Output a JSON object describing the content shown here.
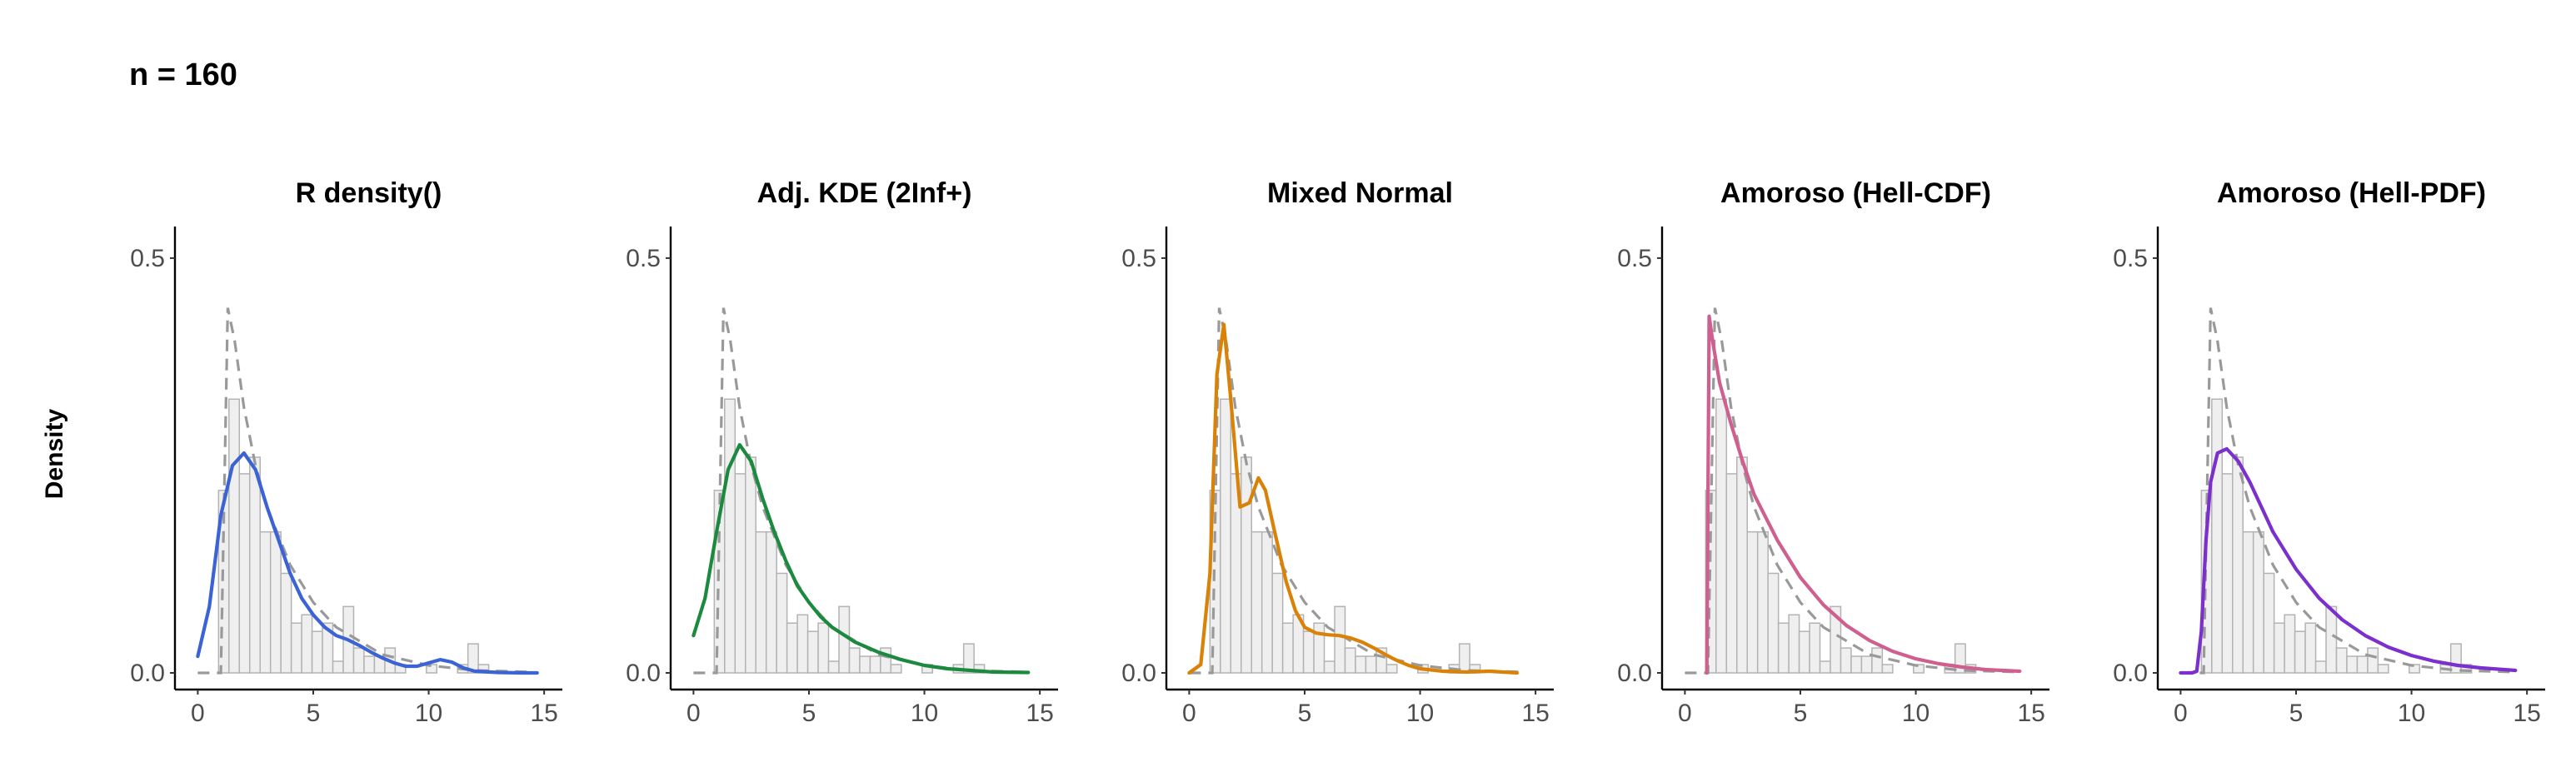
{
  "figure": {
    "title": "n = 160",
    "ylabel": "Density"
  },
  "colors": {
    "histogram_fill": "#efefef",
    "histogram_stroke": "#b3b3b3",
    "true_density": "#999999",
    "axis": "#000000"
  },
  "chart_data": [
    {
      "type": "line",
      "title": "R density()",
      "color": "#3b63d6",
      "xlim": [
        -0.7,
        15.5
      ],
      "ylim": [
        0,
        0.52
      ],
      "xticks": [
        "0",
        "5",
        "10",
        "15"
      ],
      "yticks": [
        "0.0",
        "0.5"
      ],
      "histogram": {
        "bin_width": 0.45,
        "bin_start": 0.9,
        "densities": [
          0.22,
          0.33,
          0.24,
          0.26,
          0.17,
          0.17,
          0.12,
          0.06,
          0.07,
          0.05,
          0.06,
          0.014,
          0.08,
          0.03,
          0.02,
          0.02,
          0.03,
          0.01,
          0.0,
          0.0,
          0.01,
          0.0,
          0.0,
          0.01,
          0.035,
          0.01
        ]
      },
      "true_density": {
        "x": [
          0.0,
          1.0,
          1.3,
          1.6,
          2.0,
          2.5,
          3.0,
          4.0,
          5.0,
          6.0,
          8.0,
          10.0,
          12.0,
          14.5
        ],
        "y": [
          0.0,
          0.0,
          0.44,
          0.4,
          0.32,
          0.25,
          0.2,
          0.13,
          0.085,
          0.055,
          0.022,
          0.009,
          0.003,
          0.001
        ]
      },
      "estimate": {
        "x": [
          0.0,
          0.5,
          1.0,
          1.5,
          2.0,
          2.5,
          3.0,
          3.5,
          4.0,
          4.5,
          5.0,
          5.5,
          6.0,
          6.5,
          7.0,
          7.5,
          8.0,
          8.5,
          9.0,
          9.5,
          10.0,
          10.5,
          11.0,
          11.5,
          12.0,
          13.0,
          14.0,
          14.7
        ],
        "y": [
          0.02,
          0.08,
          0.19,
          0.25,
          0.265,
          0.245,
          0.2,
          0.16,
          0.12,
          0.09,
          0.07,
          0.055,
          0.045,
          0.04,
          0.033,
          0.025,
          0.018,
          0.012,
          0.008,
          0.008,
          0.012,
          0.016,
          0.013,
          0.006,
          0.002,
          0.0005,
          0.0,
          0.0
        ]
      }
    },
    {
      "type": "line",
      "title": "Adj. KDE (2Inf+)",
      "color": "#1c8a3e",
      "xlim": [
        -0.7,
        15.5
      ],
      "ylim": [
        0,
        0.52
      ],
      "xticks": [
        "0",
        "5",
        "10",
        "15"
      ],
      "yticks": [
        "0.0",
        "0.5"
      ],
      "histogram": {
        "bin_width": 0.45,
        "bin_start": 0.9,
        "densities": [
          0.22,
          0.33,
          0.24,
          0.26,
          0.17,
          0.17,
          0.12,
          0.06,
          0.07,
          0.05,
          0.06,
          0.014,
          0.08,
          0.03,
          0.02,
          0.02,
          0.03,
          0.01,
          0.0,
          0.0,
          0.01,
          0.0,
          0.0,
          0.01,
          0.035,
          0.01
        ]
      },
      "true_density": {
        "x": [
          0.0,
          1.0,
          1.3,
          1.6,
          2.0,
          2.5,
          3.0,
          4.0,
          5.0,
          6.0,
          8.0,
          10.0,
          12.0,
          14.5
        ],
        "y": [
          0.0,
          0.0,
          0.44,
          0.4,
          0.32,
          0.25,
          0.2,
          0.13,
          0.085,
          0.055,
          0.022,
          0.009,
          0.003,
          0.001
        ]
      },
      "estimate": {
        "x": [
          0.0,
          0.5,
          1.0,
          1.5,
          2.0,
          2.5,
          3.0,
          3.5,
          4.0,
          4.5,
          5.0,
          5.5,
          6.0,
          7.0,
          8.0,
          9.0,
          10.0,
          11.0,
          12.0,
          13.0,
          14.5
        ],
        "y": [
          0.045,
          0.09,
          0.17,
          0.245,
          0.275,
          0.255,
          0.21,
          0.17,
          0.135,
          0.105,
          0.085,
          0.068,
          0.055,
          0.037,
          0.025,
          0.016,
          0.009,
          0.005,
          0.003,
          0.001,
          0.0005
        ]
      }
    },
    {
      "type": "line",
      "title": "Mixed Normal",
      "color": "#d98207",
      "xlim": [
        -0.7,
        15.5
      ],
      "ylim": [
        0,
        0.52
      ],
      "xticks": [
        "0",
        "5",
        "10",
        "15"
      ],
      "yticks": [
        "0.0",
        "0.5"
      ],
      "histogram": {
        "bin_width": 0.45,
        "bin_start": 0.9,
        "densities": [
          0.22,
          0.33,
          0.24,
          0.26,
          0.17,
          0.17,
          0.12,
          0.06,
          0.07,
          0.05,
          0.06,
          0.014,
          0.08,
          0.03,
          0.02,
          0.02,
          0.03,
          0.01,
          0.0,
          0.0,
          0.01,
          0.0,
          0.0,
          0.01,
          0.035,
          0.01
        ]
      },
      "true_density": {
        "x": [
          0.0,
          1.0,
          1.3,
          1.6,
          2.0,
          2.5,
          3.0,
          4.0,
          5.0,
          6.0,
          8.0,
          10.0,
          12.0,
          14.5
        ],
        "y": [
          0.0,
          0.0,
          0.44,
          0.4,
          0.32,
          0.25,
          0.2,
          0.13,
          0.085,
          0.055,
          0.022,
          0.009,
          0.003,
          0.001
        ]
      },
      "estimate": {
        "x": [
          0.0,
          0.5,
          0.9,
          1.2,
          1.5,
          1.8,
          2.2,
          2.6,
          3.0,
          3.3,
          3.7,
          4.2,
          4.6,
          5.0,
          5.5,
          6.0,
          6.5,
          7.0,
          7.5,
          8.0,
          8.5,
          9.0,
          9.5,
          10.0,
          11.0,
          12.0,
          13.0,
          14.2
        ],
        "y": [
          0.0,
          0.01,
          0.12,
          0.36,
          0.42,
          0.33,
          0.2,
          0.205,
          0.235,
          0.22,
          0.17,
          0.11,
          0.075,
          0.055,
          0.048,
          0.046,
          0.045,
          0.042,
          0.037,
          0.03,
          0.022,
          0.015,
          0.009,
          0.005,
          0.002,
          0.001,
          0.002,
          0.0
        ]
      }
    },
    {
      "type": "line",
      "title": "Amoroso (Hell-CDF)",
      "color": "#cf5f8e",
      "xlim": [
        -0.7,
        15.5
      ],
      "ylim": [
        0,
        0.52
      ],
      "xticks": [
        "0",
        "5",
        "10",
        "15"
      ],
      "yticks": [
        "0.0",
        "0.5"
      ],
      "histogram": {
        "bin_width": 0.45,
        "bin_start": 0.9,
        "densities": [
          0.22,
          0.33,
          0.24,
          0.26,
          0.17,
          0.17,
          0.12,
          0.06,
          0.07,
          0.05,
          0.06,
          0.014,
          0.08,
          0.03,
          0.02,
          0.02,
          0.03,
          0.01,
          0.0,
          0.0,
          0.01,
          0.0,
          0.0,
          0.01,
          0.035,
          0.01
        ]
      },
      "true_density": {
        "x": [
          0.0,
          1.0,
          1.3,
          1.6,
          2.0,
          2.5,
          3.0,
          4.0,
          5.0,
          6.0,
          8.0,
          10.0,
          12.0,
          14.5
        ],
        "y": [
          0.0,
          0.0,
          0.44,
          0.4,
          0.32,
          0.25,
          0.2,
          0.13,
          0.085,
          0.055,
          0.022,
          0.009,
          0.003,
          0.001
        ]
      },
      "estimate": {
        "x": [
          0.95,
          1.05,
          1.2,
          1.5,
          2.0,
          2.5,
          3.0,
          4.0,
          5.0,
          6.0,
          7.0,
          8.0,
          9.0,
          10.0,
          11.0,
          12.0,
          13.0,
          14.5
        ],
        "y": [
          0.0,
          0.43,
          0.4,
          0.35,
          0.3,
          0.255,
          0.215,
          0.16,
          0.115,
          0.082,
          0.057,
          0.039,
          0.026,
          0.017,
          0.011,
          0.007,
          0.004,
          0.002
        ]
      }
    },
    {
      "type": "line",
      "title": "Amoroso (Hell-PDF)",
      "color": "#7b2fcc",
      "xlim": [
        -0.7,
        15.5
      ],
      "ylim": [
        0,
        0.52
      ],
      "xticks": [
        "0",
        "5",
        "10",
        "15"
      ],
      "yticks": [
        "0.0",
        "0.5"
      ],
      "histogram": {
        "bin_width": 0.45,
        "bin_start": 0.9,
        "densities": [
          0.22,
          0.33,
          0.24,
          0.26,
          0.17,
          0.17,
          0.12,
          0.06,
          0.07,
          0.05,
          0.06,
          0.014,
          0.08,
          0.03,
          0.02,
          0.02,
          0.03,
          0.01,
          0.0,
          0.0,
          0.01,
          0.0,
          0.0,
          0.01,
          0.035,
          0.01
        ]
      },
      "true_density": {
        "x": [
          0.0,
          1.0,
          1.3,
          1.6,
          2.0,
          2.5,
          3.0,
          4.0,
          5.0,
          6.0,
          8.0,
          10.0,
          12.0,
          14.5
        ],
        "y": [
          0.0,
          0.0,
          0.44,
          0.4,
          0.32,
          0.25,
          0.2,
          0.13,
          0.085,
          0.055,
          0.022,
          0.009,
          0.003,
          0.001
        ]
      },
      "estimate": {
        "x": [
          0.0,
          0.5,
          0.7,
          0.9,
          1.1,
          1.3,
          1.6,
          2.0,
          2.5,
          3.0,
          3.5,
          4.0,
          5.0,
          6.0,
          7.0,
          8.0,
          9.0,
          10.0,
          11.0,
          12.0,
          13.0,
          14.5
        ],
        "y": [
          0.0,
          0.0,
          0.002,
          0.05,
          0.16,
          0.23,
          0.265,
          0.27,
          0.255,
          0.23,
          0.2,
          0.17,
          0.125,
          0.09,
          0.064,
          0.045,
          0.031,
          0.021,
          0.014,
          0.009,
          0.006,
          0.003
        ]
      }
    }
  ]
}
